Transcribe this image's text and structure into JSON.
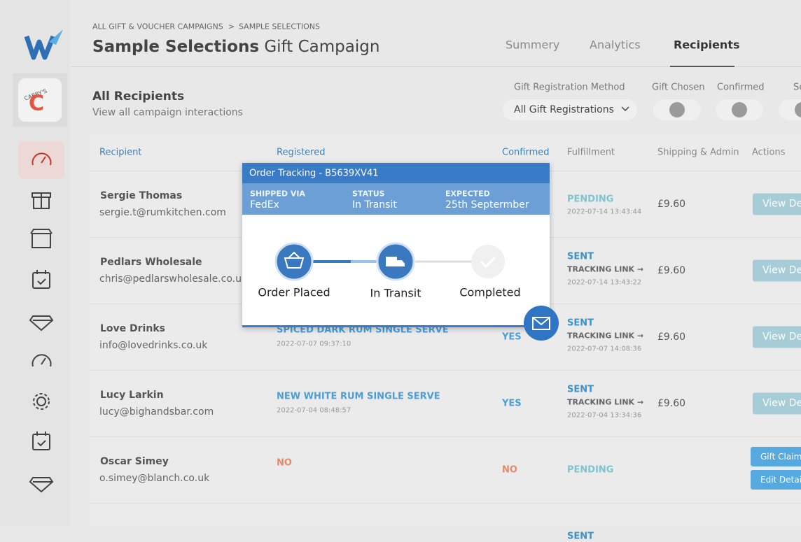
{
  "breadcrumb": [
    "ALL GIFT & VOUCHER CAMPAIGNS",
    ">",
    "SAMPLE SELECTIONS"
  ],
  "title": {
    "bold": "Sample Selections",
    "rest": "Gift Campaign"
  },
  "tabs": [
    "Summery",
    "Analytics",
    "Recipients"
  ],
  "client_logo": {
    "name": "CABBY'S",
    "initial": "C"
  },
  "section": {
    "title": "All Recipients",
    "subtitle": "View all campaign interactions"
  },
  "filters": {
    "method_label": "Gift Registration Method",
    "method_value": "All Gift Registrations",
    "toggles": [
      "Gift Chosen",
      "Confirmed",
      "Se"
    ]
  },
  "table": {
    "headers": [
      "Recipient",
      "Registered",
      "Confirmed",
      "Fulfillment",
      "Shipping & Admin",
      "Actions"
    ],
    "rows": [
      {
        "name": "Sergie Thomas",
        "email": "sergie.t@rumkitchen.com",
        "fulfillment": {
          "status": "PENDING",
          "color": "#7fc3cf",
          "date": "2022-07-14 13:43:44"
        },
        "shipping": "£9.60",
        "actions": [
          "View Details"
        ],
        "actions_color": "#a6ccd8"
      },
      {
        "name": "Pedlars Wholesale",
        "email": "chris@pedlarswholesale.co.uk",
        "fulfillment": {
          "status": "SENT",
          "color": "#3b93cc",
          "tracking": "TRACKING LINK →",
          "date": "2022-07-14 13:43:22"
        },
        "shipping": "£9.60",
        "actions": [
          "View Details"
        ],
        "actions_color": "#a6ccd8"
      },
      {
        "name": "Love Drinks",
        "email": "info@lovedrinks.co.uk",
        "registered": {
          "item": "SPICED DARK RUM SINGLE SERVE",
          "color": "#4a9fd8",
          "date": "2022-07-07 09:37:10"
        },
        "confirmed": {
          "text": "YES",
          "color": "#4a9fd8"
        },
        "fulfillment": {
          "status": "SENT",
          "color": "#3b93cc",
          "tracking": "TRACKING LINK →",
          "date": "2022-07-07 14:08:36"
        },
        "shipping": "£9.60",
        "actions": [
          "View Details"
        ],
        "actions_color": "#a6ccd8"
      },
      {
        "name": "Lucy Larkin",
        "email": "lucy@bighandsbar.com",
        "registered": {
          "item": "NEW WHITE RUM SINGLE SERVE",
          "color": "#4a9fd8",
          "date": "2022-07-04 08:48:57"
        },
        "confirmed": {
          "text": "YES",
          "color": "#4a9fd8"
        },
        "fulfillment": {
          "status": "SENT",
          "color": "#3b93cc",
          "tracking": "TRACKING LINK →",
          "date": "2022-07-04 13:34:36"
        },
        "shipping": "£9.60",
        "actions": [
          "View Details"
        ],
        "actions_color": "#a6ccd8"
      },
      {
        "name": "Oscar Simey",
        "email": "o.simey@blanch.co.uk",
        "registered": {
          "item": "NO",
          "color": "#e28a6c"
        },
        "confirmed": {
          "text": "NO",
          "color": "#e28a6c"
        },
        "fulfillment": {
          "status": "PENDING",
          "color": "#7fc3cf"
        },
        "actions": [
          "Gift Claim",
          "Edit Details"
        ],
        "actions_color": "#56a9e0"
      },
      {
        "fulfillment": {
          "status": "SENT",
          "color": "#3b93cc"
        }
      }
    ]
  },
  "tracking_popup": {
    "title": "Order Tracking - B5639XV41",
    "fields": [
      {
        "label": "SHIPPED VIA",
        "value": "FedEx"
      },
      {
        "label": "STATUS",
        "value": "In Transit"
      },
      {
        "label": "EXPECTED",
        "value": "25th Septermber"
      }
    ],
    "steps": [
      "Order Placed",
      "In Transit",
      "Completed"
    ]
  }
}
